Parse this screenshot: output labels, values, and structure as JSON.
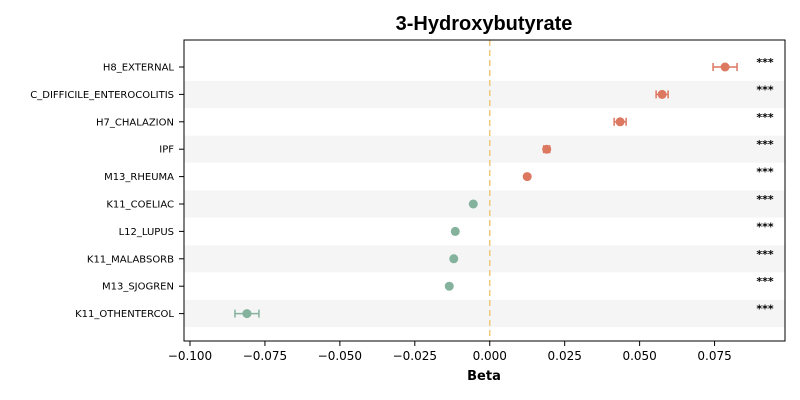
{
  "chart_data": {
    "type": "scatter",
    "title": "3-Hydroxybutyrate",
    "xlabel": "Beta",
    "ylabel": "",
    "xlim": [
      -0.102,
      0.0985
    ],
    "x_ticks": [
      -0.1,
      -0.075,
      -0.05,
      -0.025,
      0.0,
      0.025,
      0.05,
      0.075
    ],
    "x_tick_labels": [
      "−0.100",
      "−0.075",
      "−0.050",
      "−0.025",
      "0.000",
      "0.025",
      "0.050",
      "0.075"
    ],
    "reference_line": 0.0,
    "grid": false,
    "colors": {
      "positive": "#dc7760",
      "negative": "#84b29d",
      "reference_line": "#f0c87a",
      "band": "#f5f5f5"
    },
    "points": [
      {
        "label": "H8_EXTERNAL",
        "beta": 0.0785,
        "ci": [
          0.0745,
          0.0825
        ],
        "significance": "***"
      },
      {
        "label": "C_DIFFICILE_ENTEROCOLITIS",
        "beta": 0.0575,
        "ci": [
          0.0555,
          0.0595
        ],
        "significance": "***"
      },
      {
        "label": "H7_CHALAZION",
        "beta": 0.0435,
        "ci": [
          0.0415,
          0.0455
        ],
        "significance": "***"
      },
      {
        "label": "IPF",
        "beta": 0.019,
        "ci": [
          0.018,
          0.02
        ],
        "significance": "***"
      },
      {
        "label": "M13_RHEUMA",
        "beta": 0.0125,
        "ci": [
          0.012,
          0.013
        ],
        "significance": "***"
      },
      {
        "label": "K11_COELIAC",
        "beta": -0.0055,
        "ci": [
          -0.006,
          -0.005
        ],
        "significance": "***"
      },
      {
        "label": "L12_LUPUS",
        "beta": -0.0115,
        "ci": [
          -0.012,
          -0.011
        ],
        "significance": "***"
      },
      {
        "label": "K11_MALABSORB",
        "beta": -0.012,
        "ci": [
          -0.0125,
          -0.0115
        ],
        "significance": "***"
      },
      {
        "label": "M13_SJOGREN",
        "beta": -0.0135,
        "ci": [
          -0.014,
          -0.013
        ],
        "significance": "***"
      },
      {
        "label": "K11_OTHENTERCOL",
        "beta": -0.081,
        "ci": [
          -0.085,
          -0.077
        ],
        "significance": "***"
      }
    ]
  }
}
